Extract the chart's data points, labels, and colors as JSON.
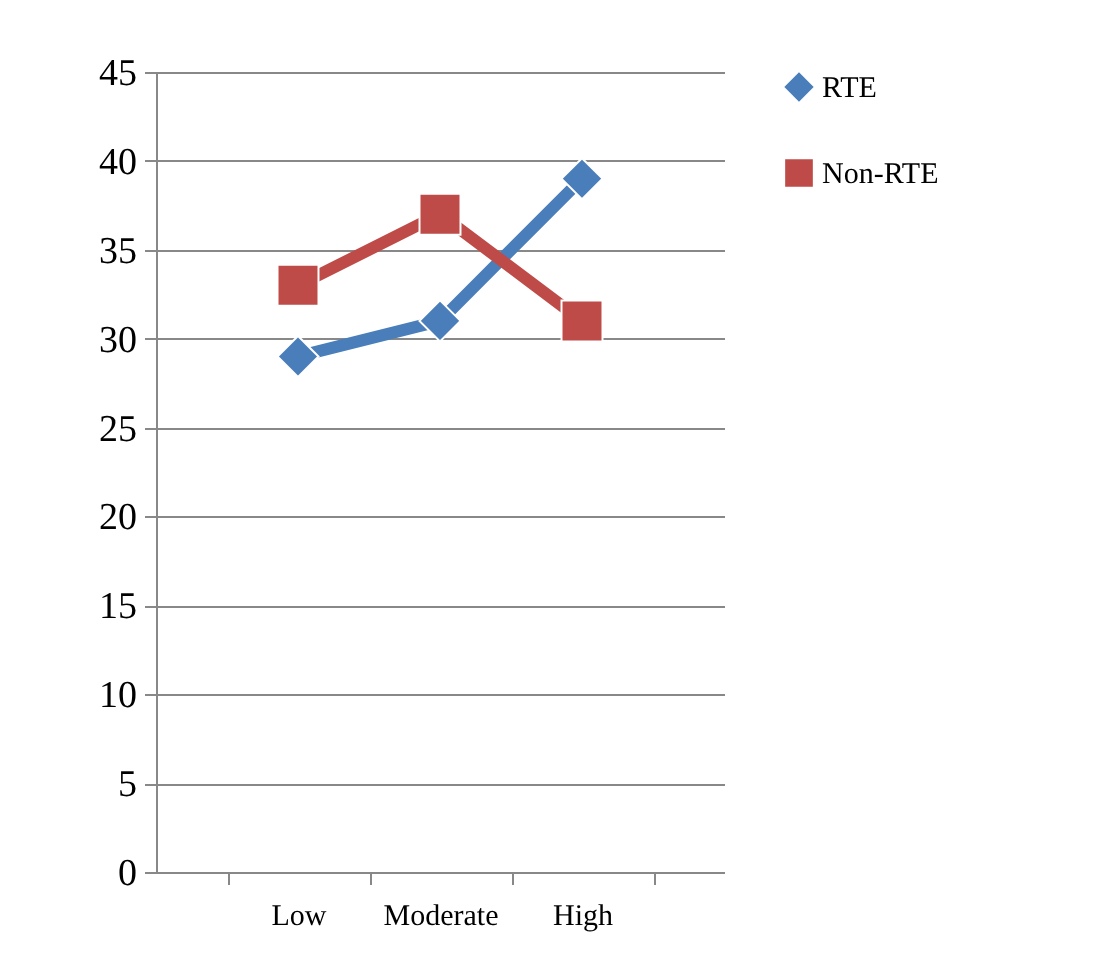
{
  "chart_data": {
    "type": "line",
    "categories": [
      "Low",
      "Moderate",
      "High"
    ],
    "series": [
      {
        "name": "RTE",
        "color": "#4a7ebb",
        "marker": "diamond",
        "values": [
          29,
          31,
          39
        ]
      },
      {
        "name": "Non-RTE",
        "color": "#be4b48",
        "marker": "square",
        "values": [
          33,
          37,
          31
        ]
      }
    ],
    "ylim": [
      0,
      45
    ],
    "yticks": [
      0,
      5,
      10,
      15,
      20,
      25,
      30,
      35,
      40,
      45
    ],
    "grid": "y",
    "legend": "right"
  }
}
